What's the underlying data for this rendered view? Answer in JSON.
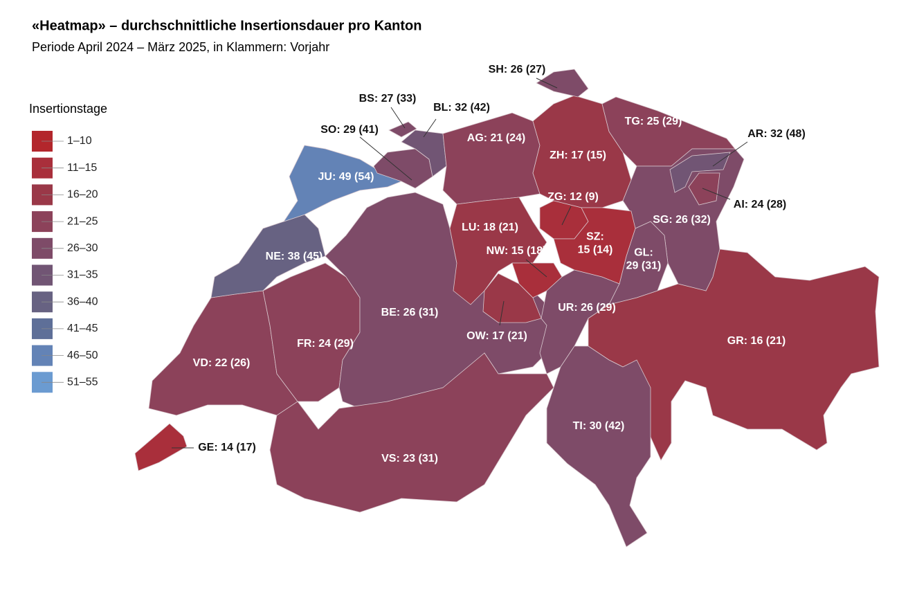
{
  "title": "«Heatmap» – durchschnittliche Insertionsdauer pro Kanton",
  "subtitle": "Periode April 2024 – März 2025, in Klammern: Vorjahr",
  "legend": {
    "title": "Insertionstage",
    "items": [
      {
        "label": "1–10",
        "color": "#b3262c"
      },
      {
        "label": "11–15",
        "color": "#a92f3b"
      },
      {
        "label": "16–20",
        "color": "#9a3848"
      },
      {
        "label": "21–25",
        "color": "#8c425a"
      },
      {
        "label": "26–30",
        "color": "#7e4b68"
      },
      {
        "label": "31–35",
        "color": "#715574"
      },
      {
        "label": "36–40",
        "color": "#676282"
      },
      {
        "label": "41–45",
        "color": "#5e6f98"
      },
      {
        "label": "46–50",
        "color": "#6383b6"
      },
      {
        "label": "51–55",
        "color": "#6b9bd1"
      }
    ]
  },
  "cantons": [
    {
      "label": [
        "VD: 22 (26)"
      ],
      "color": "#8c425a"
    },
    {
      "label": [
        "GE: 14 (17)"
      ],
      "color": "#a92f3b"
    },
    {
      "label": [
        "NE: 38 (45)"
      ],
      "color": "#676282"
    },
    {
      "label": [
        "JU: 49 (54)"
      ],
      "color": "#6383b6"
    },
    {
      "label": [
        "FR: 24 (29)"
      ],
      "color": "#8c425a"
    },
    {
      "label": [
        "BE: 26 (31)"
      ],
      "color": "#7e4b68"
    },
    {
      "label": [
        "VS: 23 (31)"
      ],
      "color": "#8c425a"
    },
    {
      "label": [
        "SO: 29 (41)"
      ],
      "color": "#7e4b68"
    },
    {
      "label": [
        "BS: 27 (33)"
      ],
      "color": "#7e4b68"
    },
    {
      "label": [
        "BL: 32 (42)"
      ],
      "color": "#715574"
    },
    {
      "label": [
        "AG: 21 (24)"
      ],
      "color": "#8c425a"
    },
    {
      "label": [
        "ZH: 17 (15)"
      ],
      "color": "#9a3848"
    },
    {
      "label": [
        "SH: 26 (27)"
      ],
      "color": "#7e4b68"
    },
    {
      "label": [
        "TG: 25 (29)"
      ],
      "color": "#8c425a"
    },
    {
      "label": [
        "LU: 18 (21)"
      ],
      "color": "#9a3848"
    },
    {
      "label": [
        "OW: 17 (21)"
      ],
      "color": "#9a3848"
    },
    {
      "label": [
        "NW: 15 (18)"
      ],
      "color": "#a92f3b"
    },
    {
      "label": [
        "UR: 26 (29)"
      ],
      "color": "#7e4b68"
    },
    {
      "label": [
        "GR: 16 (21)"
      ],
      "color": "#9a3848"
    },
    {
      "label": [
        "TI: 30 (42)"
      ],
      "color": "#7e4b68"
    },
    {
      "label": [
        "SG: 26 (32)"
      ],
      "color": "#7e4b68"
    },
    {
      "label": [
        "AR: 32 (48)"
      ],
      "color": "#715574"
    },
    {
      "label": [
        "AI: 24 (28)"
      ],
      "color": "#8c425a"
    },
    {
      "label": [
        "GL:",
        "29 (31)"
      ],
      "color": "#7e4b68"
    },
    {
      "label": [
        "ZG: 12 (9)"
      ],
      "color": "#a92f3b"
    },
    {
      "label": [
        "SZ:",
        "15 (14)"
      ],
      "color": "#a92f3b"
    }
  ]
}
